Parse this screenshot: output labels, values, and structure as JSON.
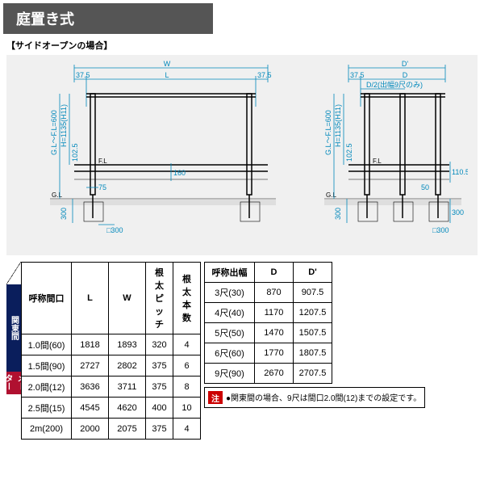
{
  "title": "庭置き式",
  "subtitle": "【サイドオープンの場合】",
  "colors": {
    "header_bg": "#555555",
    "dim_line": "#0088bb",
    "kanto_bg": "#0a1e5c",
    "meter_bg": "#b01030",
    "note_badge": "#cc0000",
    "diagram_bg": "#f0f0f0"
  },
  "diagram_front": {
    "dims": {
      "W": "W",
      "L": "L",
      "l_off": "37.5",
      "r_off": "37.5",
      "gl_fl": "G.L～F.L=600",
      "H": "H=1135(H11)",
      "h_inner": "102.5",
      "rail": "160",
      "post_off": "75",
      "depth": "300",
      "footing": "□300",
      "FL": "F.L",
      "GL": "G.L"
    }
  },
  "diagram_side": {
    "dims": {
      "D2": "D'",
      "D": "D",
      "l_off": "37.5",
      "split": "D/2(出幅9尺のみ)",
      "gl_fl": "G.L～F.L=600",
      "H": "H=1135(H11)",
      "h_inner": "102.5",
      "rail": "110.5",
      "post_off": "50",
      "depth": "300",
      "footing": "□300",
      "depth2": "300",
      "FL": "F.L",
      "GL": "G.L"
    }
  },
  "table1": {
    "headers": [
      "呼称間口",
      "L",
      "W",
      "根太\nピッチ",
      "根太\n本数"
    ],
    "rows": [
      [
        "1.0間(60)",
        "1818",
        "1893",
        "320",
        "4"
      ],
      [
        "1.5間(90)",
        "2727",
        "2802",
        "375",
        "6"
      ],
      [
        "2.0間(12)",
        "3636",
        "3711",
        "375",
        "8"
      ],
      [
        "2.5間(15)",
        "4545",
        "4620",
        "400",
        "10"
      ],
      [
        "2m(200)",
        "2000",
        "2075",
        "375",
        "4"
      ]
    ],
    "side_labels": [
      "関東間",
      "メーター"
    ]
  },
  "table2": {
    "headers": [
      "呼称出幅",
      "D",
      "D'"
    ],
    "rows": [
      [
        "3尺(30)",
        "870",
        "907.5"
      ],
      [
        "4尺(40)",
        "1170",
        "1207.5"
      ],
      [
        "5尺(50)",
        "1470",
        "1507.5"
      ],
      [
        "6尺(60)",
        "1770",
        "1807.5"
      ],
      [
        "9尺(90)",
        "2670",
        "2707.5"
      ]
    ]
  },
  "note": {
    "badge": "注",
    "text": "●関東間の場合、9尺は間口2.0間(12)までの設定です。"
  }
}
